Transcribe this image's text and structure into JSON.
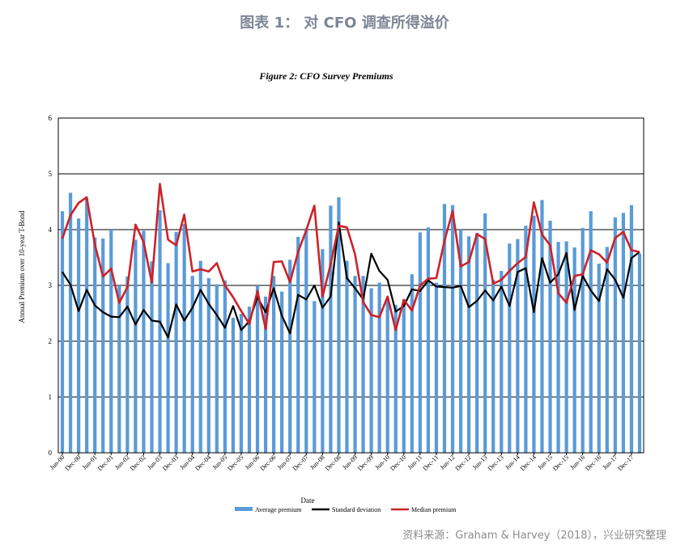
{
  "header": {
    "title": "图表 1：  对 CFO 调查所得溢价",
    "source": "资料来源：Graham & Harvey（2018），兴业研究整理"
  },
  "chart_data": {
    "type": "bar",
    "title": "Figure 2: CFO Survey Premiums",
    "xlabel": "Date",
    "ylabel": "Annual Premium over 10-year T-Bond",
    "ylim": [
      0,
      6
    ],
    "yticks": [
      "0",
      "1",
      "2",
      "3",
      "4",
      "5",
      "6"
    ],
    "grid": true,
    "legend_position": "bottom-center",
    "colors": {
      "avg": "#5a9bd8",
      "sd": "#000000",
      "median": "#cc2229"
    },
    "categories": [
      "Jun-00",
      "Sep-00",
      "Dec-00",
      "Mar-01",
      "Jun-01",
      "Sep-01",
      "Dec-01",
      "Mar-02",
      "Jun-02",
      "Sep-02",
      "Dec-02",
      "Mar-03",
      "Jun-03",
      "Sep-03",
      "Dec-03",
      "Mar-04",
      "Jun-04",
      "Sep-04",
      "Dec-04",
      "Mar-05",
      "Jun-05",
      "Sep-05",
      "Dec-05",
      "Mar-06",
      "Jun-06",
      "Sep-06",
      "Dec-06",
      "Mar-07",
      "Jun-07",
      "Sep-07",
      "Dec-07",
      "Mar-08",
      "Jun-08",
      "Sep-08",
      "Dec-08",
      "Mar-09",
      "Jun-09",
      "Sep-09",
      "Dec-09",
      "Mar-10",
      "Jun-10",
      "Sep-10",
      "Dec-10",
      "Mar-11",
      "Jun-11",
      "Sep-11",
      "Dec-11",
      "Mar-12",
      "Jun-12",
      "Sep-12",
      "Dec-12",
      "Mar-13",
      "Jun-13",
      "Sep-13",
      "Dec-13",
      "Mar-14",
      "Jun-14",
      "Sep-14",
      "Dec-14",
      "Mar-15",
      "Jun-15",
      "Sep-15",
      "Dec-15",
      "Mar-16",
      "Jun-16",
      "Sep-16",
      "Dec-16",
      "Mar-17",
      "Jun-17",
      "Sep-17",
      "Dec-17",
      "Mar-18"
    ],
    "xticks": [
      "Jun-00",
      "Dec-00",
      "Jun-01",
      "Dec-01",
      "Jun-02",
      "Dec-02",
      "Jun-03",
      "Dec-03",
      "Jun-04",
      "Dec-04",
      "Jun-05",
      "Dec-05",
      "Jun-06",
      "Dec-06",
      "Jun-07",
      "Dec-07",
      "Jun-08",
      "Dec-08",
      "Jun-09",
      "Dec-09",
      "Jun-10",
      "Dec-10",
      "Jun-11",
      "Dec-11",
      "Jun-12",
      "Dec-12",
      "Jun-13",
      "Dec-13",
      "Jun-14",
      "Dec-14",
      "Jun-15",
      "Dec-15",
      "Jun-16",
      "Dec-16",
      "Jun-17",
      "Dec-17"
    ],
    "series": [
      {
        "name": "Average premium",
        "kind": "bar",
        "values": [
          4.33,
          4.66,
          4.2,
          4.56,
          3.86,
          3.84,
          4.0,
          3.0,
          3.16,
          3.82,
          3.98,
          3.43,
          4.35,
          3.4,
          3.96,
          4.1,
          3.17,
          3.44,
          3.13,
          3.02,
          3.09,
          2.42,
          2.49,
          2.62,
          3.0,
          2.8,
          3.17,
          2.89,
          3.46,
          3.87,
          4.02,
          2.72,
          3.65,
          4.43,
          4.58,
          3.44,
          3.17,
          3.17,
          2.95,
          3.05,
          2.78,
          2.65,
          2.75,
          3.2,
          3.95,
          4.04,
          3.05,
          4.46,
          4.44,
          4.0,
          3.88,
          3.94,
          4.29,
          3.1,
          3.26,
          3.75,
          3.83,
          4.07,
          4.25,
          4.53,
          4.16,
          3.78,
          3.79,
          3.68,
          4.03,
          4.33,
          3.39,
          3.69,
          4.22,
          4.3,
          4.44,
          3.57
        ]
      },
      {
        "name": "Standard deviation",
        "kind": "line",
        "values": [
          3.24,
          3.01,
          2.54,
          2.92,
          2.64,
          2.52,
          2.44,
          2.43,
          2.62,
          2.3,
          2.56,
          2.37,
          2.35,
          2.07,
          2.66,
          2.37,
          2.6,
          2.92,
          2.67,
          2.47,
          2.24,
          2.63,
          2.2,
          2.36,
          2.79,
          2.52,
          2.95,
          2.46,
          2.14,
          2.83,
          2.75,
          3.0,
          2.6,
          2.8,
          4.13,
          3.13,
          2.95,
          2.75,
          3.57,
          3.26,
          3.1,
          2.53,
          2.63,
          2.93,
          2.9,
          3.09,
          2.98,
          2.97,
          2.96,
          2.99,
          2.61,
          2.72,
          2.91,
          2.73,
          2.98,
          2.63,
          3.24,
          3.31,
          2.52,
          3.49,
          3.05,
          3.2,
          3.58,
          2.56,
          3.17,
          2.91,
          2.72,
          3.29,
          3.1,
          2.78,
          3.49,
          3.6
        ]
      },
      {
        "name": "Median premium",
        "kind": "line",
        "values": [
          3.84,
          4.26,
          4.48,
          4.58,
          3.73,
          3.16,
          3.3,
          2.69,
          2.97,
          4.09,
          3.78,
          3.05,
          4.82,
          3.82,
          3.72,
          4.27,
          3.25,
          3.29,
          3.25,
          3.4,
          3.0,
          2.79,
          2.54,
          2.31,
          2.9,
          2.22,
          3.42,
          3.43,
          3.06,
          3.6,
          3.99,
          4.43,
          2.8,
          3.38,
          4.07,
          4.04,
          3.56,
          2.7,
          2.47,
          2.43,
          2.8,
          2.2,
          2.74,
          2.55,
          3.0,
          3.12,
          3.13,
          3.8,
          4.33,
          3.34,
          3.42,
          3.92,
          3.83,
          3.03,
          3.1,
          3.26,
          3.4,
          3.51,
          4.49,
          3.91,
          3.72,
          2.86,
          2.69,
          3.17,
          3.2,
          3.63,
          3.56,
          3.41,
          3.85,
          3.96,
          3.63,
          3.6
        ]
      }
    ]
  }
}
